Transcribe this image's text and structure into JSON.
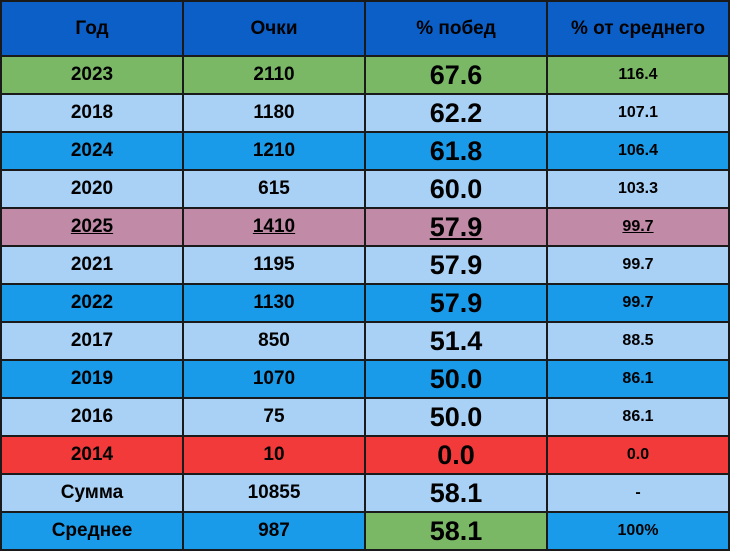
{
  "table": {
    "header": [
      "Год",
      "Очки",
      "% побед",
      "% от среднего"
    ],
    "rows": [
      [
        "2023",
        "2110",
        "67.6",
        "116.4"
      ],
      [
        "2018",
        "1180",
        "62.2",
        "107.1"
      ],
      [
        "2024",
        "1210",
        "61.8",
        "106.4"
      ],
      [
        "2020",
        "615",
        "60.0",
        "103.3"
      ],
      [
        "2025",
        "1410",
        "57.9",
        "99.7"
      ],
      [
        "2021",
        "1195",
        "57.9",
        "99.7"
      ],
      [
        "2022",
        "1130",
        "57.9",
        "99.7"
      ],
      [
        "2017",
        "850",
        "51.4",
        "88.5"
      ],
      [
        "2019",
        "1070",
        "50.0",
        "86.1"
      ],
      [
        "2016",
        "75",
        "50.0",
        "86.1"
      ],
      [
        "2014",
        "10",
        "0.0",
        "0.0"
      ],
      [
        "Сумма",
        "10855",
        "58.1",
        "-"
      ],
      [
        "Среднее",
        "987",
        "58.1",
        "100%"
      ]
    ]
  }
}
